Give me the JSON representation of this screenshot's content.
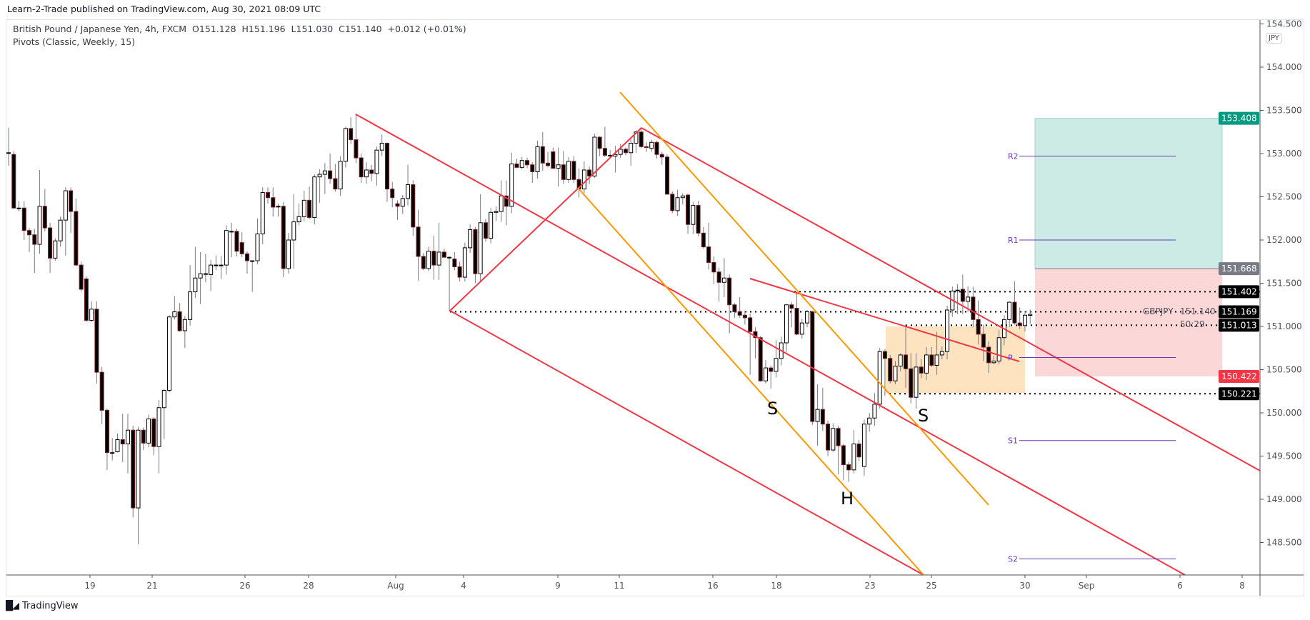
{
  "header": {
    "published": "Learn-2-Trade published on TradingView.com, Aug 30, 2021 08:09 UTC",
    "symbol_line": "British Pound / Japanese Yen, 4h, FXCM  O151.128  H151.196  L151.030  C151.140  +0.012 (+0.01%)",
    "indicator_line": "Pivots (Classic, Weekly, 15)"
  },
  "footer": {
    "brand": "TradingView",
    "logo": "TV"
  },
  "axis": {
    "currency": "JPY",
    "symbol": "GBPJPY",
    "countdown": "50:29",
    "current_price": "151.140"
  },
  "colors": {
    "bull_body": "#ffffff",
    "bear_body": "#000000",
    "bear_border": "#7b1e1e",
    "wick": "#787b86",
    "trendline": "#f23645",
    "channel_orange": "#ff9800",
    "pivot": "#673ab7",
    "target_zone": "#cdebe5",
    "stop_zone": "#fbd7d7",
    "range_box": "#fde3bf"
  },
  "price_labels": [
    {
      "text": "153.408",
      "value": 153.408,
      "color": "#089981"
    },
    {
      "text": "151.668",
      "value": 151.668,
      "color": "#787b86"
    },
    {
      "text": "151.402",
      "value": 151.402,
      "color": "#000000"
    },
    {
      "text": "151.169",
      "value": 151.169,
      "color": "#000000"
    },
    {
      "text": "151.013",
      "value": 151.013,
      "color": "#000000"
    },
    {
      "text": "150.422",
      "value": 150.422,
      "color": "#f23645"
    },
    {
      "text": "150.221",
      "value": 150.221,
      "color": "#000000"
    }
  ],
  "pivots": [
    {
      "label": "R2",
      "value": 152.97
    },
    {
      "label": "R1",
      "value": 152.0
    },
    {
      "label": "P",
      "value": 150.64
    },
    {
      "label": "S1",
      "value": 149.68
    },
    {
      "label": "S2",
      "value": 148.31
    }
  ],
  "patterns": [
    {
      "label": "S"
    },
    {
      "label": "H"
    },
    {
      "label": "S"
    }
  ],
  "position": {
    "target": 153.408,
    "entry": 151.668,
    "stop": 150.422
  },
  "range_box": {
    "top": 151.0,
    "bottom": 150.23
  },
  "chart_data": {
    "type": "candlestick",
    "title": "British Pound / Japanese Yen, 4h, FXCM",
    "ylim": [
      148.2,
      154.6
    ],
    "yticks": [
      "148.500",
      "149.000",
      "149.500",
      "150.000",
      "150.500",
      "151.000",
      "151.500",
      "152.000",
      "152.500",
      "153.000",
      "153.500",
      "154.000",
      "154.500"
    ],
    "xticks": [
      "19",
      "21",
      "26",
      "28",
      "Aug",
      "4",
      "9",
      "11",
      "16",
      "18",
      "23",
      "25",
      "30",
      "Sep",
      "6",
      "8"
    ],
    "grid": false,
    "ohlc": [
      [
        153.01,
        153.3,
        152.86,
        153.01
      ],
      [
        152.99,
        153.03,
        152.36,
        152.37
      ],
      [
        152.37,
        152.45,
        152.33,
        152.37
      ],
      [
        152.37,
        152.45,
        152.0,
        152.11
      ],
      [
        152.11,
        152.14,
        151.86,
        152.06
      ],
      [
        152.06,
        152.13,
        151.62,
        151.95
      ],
      [
        151.95,
        152.81,
        151.84,
        152.39
      ],
      [
        152.39,
        152.59,
        152.1,
        152.14
      ],
      [
        152.14,
        152.2,
        151.62,
        151.79
      ],
      [
        151.79,
        152.02,
        151.76,
        151.99
      ],
      [
        151.99,
        152.27,
        151.92,
        152.23
      ],
      [
        152.23,
        152.61,
        151.82,
        152.57
      ],
      [
        152.57,
        152.61,
        152.08,
        152.33
      ],
      [
        152.33,
        152.48,
        151.7,
        151.71
      ],
      [
        151.71,
        151.75,
        151.4,
        151.43
      ],
      [
        151.55,
        151.58,
        151.05,
        151.07
      ],
      [
        151.07,
        151.29,
        151.05,
        151.2
      ],
      [
        151.2,
        151.29,
        150.34,
        150.47
      ],
      [
        150.47,
        150.53,
        149.87,
        150.03
      ],
      [
        150.03,
        150.05,
        149.34,
        149.54
      ],
      [
        149.54,
        149.71,
        149.45,
        149.54
      ],
      [
        149.55,
        149.76,
        149.54,
        149.69
      ],
      [
        149.69,
        149.99,
        149.43,
        149.64
      ],
      [
        149.64,
        149.99,
        149.3,
        149.8
      ],
      [
        149.8,
        149.85,
        148.79,
        148.9
      ],
      [
        148.9,
        149.84,
        148.48,
        149.8
      ],
      [
        149.8,
        149.83,
        149.57,
        149.65
      ],
      [
        149.65,
        149.98,
        149.6,
        149.93
      ],
      [
        149.93,
        149.95,
        149.51,
        149.61
      ],
      [
        149.61,
        150.15,
        149.3,
        150.06
      ],
      [
        150.06,
        150.28,
        149.7,
        150.26
      ],
      [
        150.26,
        151.13,
        150.24,
        151.11
      ],
      [
        151.11,
        151.35,
        151.08,
        151.17
      ],
      [
        151.17,
        151.27,
        150.94,
        150.95
      ],
      [
        150.95,
        151.12,
        150.75,
        151.08
      ],
      [
        151.08,
        151.71,
        151.01,
        151.4
      ],
      [
        151.4,
        151.92,
        151.33,
        151.56
      ],
      [
        151.56,
        151.86,
        151.26,
        151.61
      ],
      [
        151.61,
        151.84,
        151.51,
        151.61
      ],
      [
        151.6,
        151.77,
        151.41,
        151.71
      ],
      [
        151.71,
        151.82,
        151.65,
        151.71
      ],
      [
        151.71,
        151.81,
        151.55,
        151.71
      ],
      [
        151.71,
        152.17,
        151.6,
        152.11
      ],
      [
        152.1,
        152.2,
        151.8,
        152.1
      ],
      [
        152.1,
        152.13,
        151.81,
        151.87
      ],
      [
        151.97,
        152.09,
        151.8,
        151.84
      ],
      [
        151.84,
        151.87,
        151.61,
        151.76
      ],
      [
        151.76,
        151.76,
        151.4,
        151.76
      ],
      [
        151.76,
        152.25,
        151.72,
        152.07
      ],
      [
        152.07,
        152.61,
        151.95,
        152.55
      ],
      [
        152.55,
        152.61,
        152.42,
        152.49
      ],
      [
        152.49,
        152.61,
        152.27,
        152.38
      ],
      [
        152.39,
        152.42,
        152.27,
        152.39
      ],
      [
        152.39,
        152.44,
        151.57,
        151.67
      ],
      [
        151.67,
        152.08,
        151.61,
        152.0
      ],
      [
        152.0,
        152.53,
        151.67,
        152.21
      ],
      [
        152.21,
        152.42,
        152.17,
        152.27
      ],
      [
        152.27,
        152.57,
        152.22,
        152.46
      ],
      [
        152.46,
        152.62,
        152.24,
        152.26
      ],
      [
        152.26,
        152.76,
        152.18,
        152.73
      ],
      [
        152.73,
        152.82,
        152.43,
        152.76
      ],
      [
        152.76,
        152.89,
        152.53,
        152.8
      ],
      [
        152.8,
        153.0,
        152.65,
        152.71
      ],
      [
        152.71,
        152.88,
        152.56,
        152.59
      ],
      [
        152.59,
        152.97,
        152.51,
        152.91
      ],
      [
        152.91,
        153.31,
        152.84,
        153.29
      ],
      [
        153.29,
        153.42,
        153.11,
        153.16
      ],
      [
        153.16,
        153.45,
        152.89,
        152.95
      ],
      [
        152.95,
        153.0,
        152.66,
        152.73
      ],
      [
        152.73,
        152.9,
        152.65,
        152.81
      ],
      [
        152.81,
        152.87,
        152.68,
        152.77
      ],
      [
        152.77,
        153.08,
        152.63,
        153.04
      ],
      [
        153.04,
        153.22,
        152.97,
        153.12
      ],
      [
        153.12,
        153.13,
        152.44,
        152.59
      ],
      [
        152.59,
        152.67,
        152.38,
        152.49
      ],
      [
        152.42,
        152.46,
        152.23,
        152.39
      ],
      [
        152.39,
        152.52,
        152.3,
        152.48
      ],
      [
        152.48,
        152.87,
        152.4,
        152.64
      ],
      [
        152.64,
        152.69,
        152.05,
        152.15
      ],
      [
        152.15,
        152.35,
        151.53,
        151.81
      ],
      [
        151.81,
        151.85,
        151.65,
        151.67
      ],
      [
        151.67,
        151.92,
        151.64,
        151.87
      ],
      [
        151.87,
        152.05,
        151.54,
        151.71
      ],
      [
        151.71,
        152.2,
        151.54,
        151.86
      ],
      [
        151.86,
        151.9,
        151.8,
        151.8
      ],
      [
        151.8,
        151.81,
        151.17,
        151.8
      ],
      [
        151.78,
        151.86,
        151.65,
        151.69
      ],
      [
        151.69,
        151.75,
        151.52,
        151.57
      ],
      [
        151.57,
        151.97,
        151.52,
        151.91
      ],
      [
        151.91,
        152.18,
        151.85,
        152.12
      ],
      [
        152.12,
        152.15,
        151.5,
        151.61
      ],
      [
        151.61,
        152.53,
        151.52,
        152.2
      ],
      [
        152.2,
        152.24,
        151.98,
        152.02
      ],
      [
        152.02,
        152.37,
        151.96,
        152.32
      ],
      [
        152.32,
        152.39,
        152.22,
        152.33
      ],
      [
        152.33,
        152.69,
        152.21,
        152.51
      ],
      [
        152.51,
        152.69,
        152.17,
        152.39
      ],
      [
        152.39,
        153.01,
        152.31,
        152.88
      ],
      [
        152.88,
        152.94,
        152.83,
        152.84
      ],
      [
        152.84,
        152.96,
        152.82,
        152.92
      ],
      [
        152.92,
        152.95,
        152.83,
        152.87
      ],
      [
        152.87,
        152.9,
        152.66,
        152.79
      ],
      [
        152.79,
        153.15,
        152.71,
        153.08
      ],
      [
        153.08,
        153.25,
        152.8,
        152.89
      ],
      [
        152.89,
        153.02,
        152.84,
        152.86
      ],
      [
        153.02,
        153.07,
        152.82,
        152.83
      ],
      [
        152.83,
        153.07,
        152.62,
        152.87
      ],
      [
        152.87,
        153.03,
        152.65,
        152.7
      ],
      [
        152.7,
        152.96,
        152.66,
        152.91
      ],
      [
        152.91,
        152.97,
        152.66,
        152.7
      ],
      [
        152.7,
        152.83,
        152.49,
        152.59
      ],
      [
        152.59,
        152.91,
        152.54,
        152.81
      ],
      [
        152.81,
        152.85,
        152.65,
        152.74
      ],
      [
        152.74,
        153.23,
        152.72,
        153.19
      ],
      [
        153.19,
        153.2,
        152.97,
        153.06
      ],
      [
        153.06,
        153.31,
        152.96,
        152.98
      ],
      [
        152.98,
        153.04,
        152.95,
        152.98
      ],
      [
        152.97,
        153.09,
        152.78,
        152.99
      ],
      [
        152.99,
        153.11,
        152.95,
        153.05
      ],
      [
        153.05,
        153.07,
        152.98,
        153.01
      ],
      [
        153.01,
        153.17,
        152.86,
        153.12
      ],
      [
        153.12,
        153.27,
        153.01,
        153.25
      ],
      [
        153.25,
        153.3,
        153.06,
        153.08
      ],
      [
        153.08,
        153.13,
        153.02,
        153.07
      ],
      [
        153.06,
        153.16,
        153.02,
        153.13
      ],
      [
        153.13,
        153.15,
        152.94,
        152.99
      ],
      [
        152.99,
        153.02,
        152.87,
        152.96
      ],
      [
        152.96,
        152.99,
        152.53,
        152.53
      ],
      [
        152.53,
        152.56,
        152.31,
        152.34
      ],
      [
        152.34,
        152.58,
        152.28,
        152.49
      ],
      [
        152.49,
        152.54,
        152.41,
        152.51
      ],
      [
        152.52,
        152.54,
        152.07,
        152.18
      ],
      [
        152.18,
        152.44,
        152.07,
        152.4
      ],
      [
        152.4,
        152.45,
        152.04,
        152.08
      ],
      [
        152.08,
        152.15,
        151.9,
        151.92
      ],
      [
        151.92,
        152.2,
        151.66,
        151.74
      ],
      [
        151.74,
        151.81,
        151.49,
        151.63
      ],
      [
        151.63,
        151.68,
        151.29,
        151.51
      ],
      [
        151.51,
        151.79,
        151.34,
        151.56
      ],
      [
        151.56,
        151.6,
        150.92,
        151.25
      ],
      [
        151.25,
        151.27,
        151.1,
        151.17
      ],
      [
        151.17,
        151.34,
        151.1,
        151.13
      ],
      [
        151.13,
        151.18,
        151.02,
        151.1
      ],
      [
        151.1,
        151.15,
        150.44,
        150.94
      ],
      [
        150.94,
        150.99,
        150.63,
        150.87
      ],
      [
        150.87,
        150.89,
        150.36,
        150.37
      ],
      [
        150.37,
        150.61,
        150.34,
        150.52
      ],
      [
        150.52,
        150.55,
        150.28,
        150.48
      ],
      [
        150.48,
        150.84,
        150.41,
        150.63
      ],
      [
        150.63,
        150.88,
        150.55,
        150.81
      ],
      [
        150.81,
        151.26,
        150.7,
        151.25
      ],
      [
        151.25,
        151.28,
        150.99,
        151.21
      ],
      [
        151.21,
        151.4,
        150.9,
        150.91
      ],
      [
        150.91,
        151.09,
        150.86,
        151.04
      ],
      [
        151.04,
        151.19,
        150.99,
        151.17
      ],
      [
        151.17,
        151.18,
        149.86,
        149.9
      ],
      [
        149.9,
        150.33,
        149.62,
        150.04
      ],
      [
        150.04,
        150.29,
        149.79,
        149.87
      ],
      [
        149.87,
        149.91,
        149.5,
        149.57
      ],
      [
        149.57,
        149.88,
        149.55,
        149.82
      ],
      [
        149.82,
        149.85,
        149.29,
        149.62
      ],
      [
        149.62,
        149.64,
        149.22,
        149.4
      ],
      [
        149.4,
        149.43,
        149.2,
        149.34
      ],
      [
        149.34,
        149.8,
        149.3,
        149.64
      ],
      [
        149.64,
        149.69,
        149.44,
        149.49
      ],
      [
        149.38,
        149.92,
        149.27,
        149.87
      ],
      [
        149.87,
        150.0,
        149.78,
        149.94
      ],
      [
        149.94,
        150.23,
        149.85,
        150.1
      ],
      [
        150.1,
        150.75,
        150.05,
        150.71
      ],
      [
        150.71,
        150.74,
        150.2,
        150.63
      ],
      [
        150.63,
        150.67,
        150.34,
        150.37
      ],
      [
        150.37,
        150.6,
        150.33,
        150.54
      ],
      [
        150.54,
        150.69,
        150.48,
        150.67
      ],
      [
        150.67,
        151.02,
        150.29,
        150.51
      ],
      [
        150.51,
        150.69,
        150.11,
        150.18
      ],
      [
        150.18,
        150.69,
        150.05,
        150.53
      ],
      [
        150.53,
        150.62,
        150.4,
        150.46
      ],
      [
        150.46,
        150.76,
        150.38,
        150.67
      ],
      [
        150.67,
        150.76,
        150.53,
        150.55
      ],
      [
        150.55,
        150.94,
        150.44,
        150.67
      ],
      [
        150.67,
        150.77,
        150.62,
        150.71
      ],
      [
        150.71,
        151.24,
        150.62,
        151.19
      ],
      [
        151.19,
        151.46,
        151.11,
        151.41
      ],
      [
        151.42,
        151.49,
        151.14,
        151.42
      ],
      [
        151.43,
        151.6,
        151.14,
        151.29
      ],
      [
        151.29,
        151.46,
        151.17,
        151.34
      ],
      [
        151.34,
        151.46,
        150.99,
        151.08
      ],
      [
        151.08,
        151.3,
        150.79,
        150.91
      ],
      [
        150.91,
        151.02,
        150.6,
        150.76
      ],
      [
        150.76,
        150.83,
        150.46,
        150.58
      ],
      [
        150.58,
        150.66,
        150.56,
        150.6
      ],
      [
        150.6,
        150.96,
        150.56,
        150.87
      ],
      [
        150.87,
        151.13,
        150.78,
        151.08
      ],
      [
        151.08,
        151.29,
        150.99,
        151.28
      ],
      [
        151.28,
        151.52,
        151.02,
        151.04
      ],
      [
        151.04,
        151.22,
        150.97,
        151.01
      ],
      [
        151.01,
        151.18,
        150.94,
        151.13
      ],
      [
        151.128,
        151.196,
        151.03,
        151.14
      ]
    ]
  }
}
